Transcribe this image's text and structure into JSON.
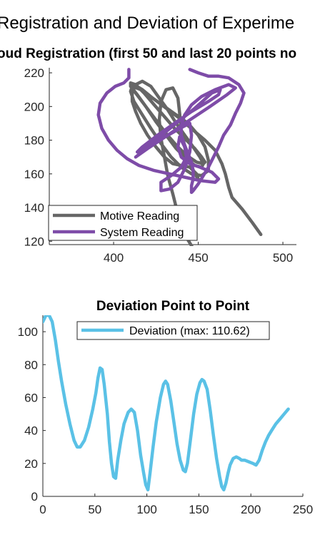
{
  "figure": {
    "suptitle": "Registration and Deviation of Experime"
  },
  "chart_data": [
    {
      "type": "line",
      "title": "oud Registration (first 50 and last 20 points no",
      "xlabel": "",
      "ylabel": "",
      "xlim": [
        362,
        508
      ],
      "ylim": [
        118,
        223
      ],
      "xticks": [
        400,
        450,
        500
      ],
      "yticks": [
        120,
        140,
        160,
        180,
        200,
        220
      ],
      "grid": false,
      "legend_position": "bottom-left",
      "series": [
        {
          "name": "Motive Reading",
          "color": "#666666",
          "points": [
            [
              448,
              114
            ],
            [
              442,
              124
            ],
            [
              438,
              136
            ],
            [
              435,
              148
            ],
            [
              432,
              159
            ],
            [
              430,
              170
            ],
            [
              428,
              181
            ],
            [
              427,
              192
            ],
            [
              428,
              203
            ],
            [
              431,
              210
            ],
            [
              435,
              211
            ],
            [
              438,
              205
            ],
            [
              439,
              196
            ],
            [
              440,
              186
            ],
            [
              442,
              176
            ],
            [
              445,
              167
            ],
            [
              448,
              160
            ],
            [
              450,
              157
            ],
            [
              449,
              160
            ],
            [
              445,
              164
            ],
            [
              440,
              165
            ],
            [
              435,
              166
            ],
            [
              430,
              170
            ],
            [
              425,
              176
            ],
            [
              420,
              183
            ],
            [
              416,
              190
            ],
            [
              413,
              197
            ],
            [
              411,
              203
            ],
            [
              411,
              209
            ],
            [
              413,
              213
            ],
            [
              417,
              215
            ],
            [
              422,
              212
            ],
            [
              427,
              205
            ],
            [
              432,
              198
            ],
            [
              437,
              190
            ],
            [
              442,
              183
            ],
            [
              447,
              176
            ],
            [
              451,
              170
            ],
            [
              453,
              166
            ],
            [
              452,
              164
            ],
            [
              448,
              165
            ],
            [
              443,
              169
            ],
            [
              437,
              175
            ],
            [
              431,
              183
            ],
            [
              425,
              191
            ],
            [
              419,
              200
            ],
            [
              414,
              207
            ],
            [
              410,
              212
            ],
            [
              410,
              214
            ],
            [
              413,
              213
            ],
            [
              418,
              208
            ],
            [
              424,
              201
            ],
            [
              430,
              194
            ],
            [
              436,
              187
            ],
            [
              442,
              181
            ],
            [
              448,
              175
            ],
            [
              452,
              170
            ],
            [
              454,
              167
            ],
            [
              453,
              166
            ],
            [
              449,
              167
            ],
            [
              443,
              171
            ],
            [
              437,
              177
            ],
            [
              431,
              184
            ],
            [
              425,
              192
            ],
            [
              419,
              200
            ],
            [
              413,
              208
            ],
            [
              410,
              212
            ],
            [
              412,
              213
            ],
            [
              417,
              210
            ],
            [
              423,
              205
            ],
            [
              430,
              200
            ],
            [
              437,
              195
            ],
            [
              444,
              190
            ],
            [
              450,
              183
            ],
            [
              454,
              176
            ],
            [
              456,
              168
            ],
            [
              456,
              162
            ],
            [
              452,
              159
            ],
            [
              446,
              160
            ],
            [
              440,
              164
            ],
            [
              434,
              170
            ],
            [
              428,
              178
            ],
            [
              422,
              187
            ],
            [
              417,
              195
            ],
            [
              412,
              203
            ],
            [
              410,
              209
            ],
            [
              411,
              212
            ],
            [
              416,
              210
            ],
            [
              423,
              205
            ],
            [
              431,
              199
            ],
            [
              439,
              193
            ],
            [
              447,
              186
            ],
            [
              454,
              180
            ],
            [
              460,
              174
            ],
            [
              464,
              166
            ],
            [
              466,
              160
            ],
            [
              468,
              152
            ],
            [
              470,
              146
            ],
            [
              476,
              139
            ],
            [
              482,
              131
            ],
            [
              487,
              124
            ]
          ]
        },
        {
          "name": "System Reading",
          "color": "#7e4ca8",
          "points": [
            [
              409,
              222
            ],
            [
              409,
              217
            ],
            [
              406,
              214
            ],
            [
              401,
              212
            ],
            [
              396,
              208
            ],
            [
              392,
              202
            ],
            [
              391,
              195
            ],
            [
              393,
              187
            ],
            [
              397,
              180
            ],
            [
              402,
              174
            ],
            [
              408,
              169
            ],
            [
              415,
              165
            ],
            [
              424,
              162
            ],
            [
              433,
              160
            ],
            [
              442,
              158
            ],
            [
              451,
              156
            ],
            [
              460,
              155
            ],
            [
              462,
              157
            ],
            [
              458,
              161
            ],
            [
              451,
              164
            ],
            [
              445,
              166
            ],
            [
              440,
              170
            ],
            [
              438,
              176
            ],
            [
              439,
              182
            ],
            [
              442,
              176
            ],
            [
              443,
              170
            ],
            [
              440,
              164
            ],
            [
              434,
              159
            ],
            [
              428,
              155
            ],
            [
              428,
              150
            ],
            [
              433,
              151
            ],
            [
              438,
              155
            ],
            [
              442,
              163
            ],
            [
              445,
              173
            ],
            [
              446,
              183
            ],
            [
              445,
              190
            ],
            [
              441,
              188
            ],
            [
              434,
              184
            ],
            [
              426,
              180
            ],
            [
              419,
              176
            ],
            [
              414,
              173
            ],
            [
              417,
              176
            ],
            [
              426,
              183
            ],
            [
              436,
              190
            ],
            [
              446,
              197
            ],
            [
              456,
              203
            ],
            [
              462,
              207
            ],
            [
              463,
              210
            ],
            [
              458,
              208
            ],
            [
              448,
              199
            ],
            [
              437,
              190
            ],
            [
              426,
              181
            ],
            [
              418,
              174
            ],
            [
              413,
              170
            ],
            [
              420,
              175
            ],
            [
              432,
              183
            ],
            [
              445,
              192
            ],
            [
              457,
              200
            ],
            [
              467,
              207
            ],
            [
              472,
              211
            ],
            [
              468,
              213
            ],
            [
              460,
              210
            ],
            [
              452,
              206
            ],
            [
              446,
              201
            ],
            [
              442,
              195
            ],
            [
              440,
              189
            ],
            [
              440,
              183
            ],
            [
              442,
              177
            ],
            [
              444,
              172
            ],
            [
              446,
              167
            ],
            [
              447,
              162
            ],
            [
              447,
              157
            ],
            [
              446,
              153
            ],
            [
              446,
              149
            ],
            [
              447,
              150
            ],
            [
              450,
              154
            ],
            [
              453,
              159
            ],
            [
              456,
              164
            ],
            [
              459,
              170
            ],
            [
              462,
              176
            ],
            [
              465,
              183
            ],
            [
              469,
              189
            ],
            [
              472,
              196
            ],
            [
              475,
              202
            ],
            [
              477,
              208
            ],
            [
              474,
              213
            ],
            [
              468,
              217
            ],
            [
              462,
              218
            ],
            [
              456,
              218
            ],
            [
              450,
              220
            ],
            [
              445,
              222
            ]
          ]
        }
      ]
    },
    {
      "type": "line",
      "title": "Deviation Point to Point",
      "xlabel": "",
      "ylabel": "",
      "xlim": [
        0,
        250
      ],
      "ylim": [
        0,
        110
      ],
      "xticks": [
        0,
        50,
        100,
        150,
        200,
        250
      ],
      "yticks": [
        0,
        20,
        40,
        60,
        80,
        100
      ],
      "grid": false,
      "legend_position": "top",
      "series": [
        {
          "name": "Deviation (max: 110.62)",
          "color": "#5ac1e6",
          "points": [
            [
              0,
              106
            ],
            [
              3,
              110
            ],
            [
              6,
              110
            ],
            [
              9,
              106
            ],
            [
              12,
              95
            ],
            [
              15,
              82
            ],
            [
              18,
              70
            ],
            [
              22,
              56
            ],
            [
              26,
              44
            ],
            [
              30,
              34
            ],
            [
              33,
              30
            ],
            [
              36,
              30
            ],
            [
              40,
              34
            ],
            [
              44,
              42
            ],
            [
              48,
              53
            ],
            [
              51,
              63
            ],
            [
              53,
              72
            ],
            [
              55,
              78
            ],
            [
              57,
              77
            ],
            [
              59,
              68
            ],
            [
              62,
              50
            ],
            [
              64,
              33
            ],
            [
              66,
              20
            ],
            [
              68,
              12
            ],
            [
              70,
              11
            ],
            [
              72,
              22
            ],
            [
              75,
              34
            ],
            [
              78,
              44
            ],
            [
              82,
              51
            ],
            [
              85,
              53
            ],
            [
              88,
              51
            ],
            [
              91,
              40
            ],
            [
              94,
              25
            ],
            [
              97,
              14
            ],
            [
              99,
              7
            ],
            [
              101,
              4
            ],
            [
              103,
              14
            ],
            [
              106,
              30
            ],
            [
              109,
              45
            ],
            [
              113,
              60
            ],
            [
              116,
              68
            ],
            [
              118,
              70
            ],
            [
              120,
              68
            ],
            [
              123,
              58
            ],
            [
              126,
              45
            ],
            [
              129,
              32
            ],
            [
              132,
              22
            ],
            [
              135,
              16
            ],
            [
              137,
              15
            ],
            [
              139,
              20
            ],
            [
              142,
              35
            ],
            [
              145,
              50
            ],
            [
              148,
              62
            ],
            [
              151,
              69
            ],
            [
              153,
              71
            ],
            [
              155,
              70
            ],
            [
              158,
              65
            ],
            [
              161,
              52
            ],
            [
              164,
              37
            ],
            [
              167,
              23
            ],
            [
              170,
              12
            ],
            [
              172,
              6
            ],
            [
              174,
              4
            ],
            [
              176,
              8
            ],
            [
              178,
              14
            ],
            [
              180,
              19
            ],
            [
              183,
              23
            ],
            [
              186,
              24
            ],
            [
              189,
              23
            ],
            [
              191,
              22
            ],
            [
              194,
              22
            ],
            [
              198,
              21
            ],
            [
              202,
              20
            ],
            [
              205,
              19
            ],
            [
              208,
              22
            ],
            [
              211,
              28
            ],
            [
              214,
              33
            ],
            [
              217,
              37
            ],
            [
              220,
              40
            ],
            [
              224,
              44
            ],
            [
              228,
              47
            ],
            [
              232,
              50
            ],
            [
              236,
              53
            ]
          ]
        }
      ]
    }
  ]
}
